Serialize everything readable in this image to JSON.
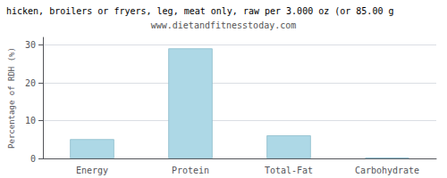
{
  "chart_data": {
    "type": "bar",
    "title": "hicken, broilers or fryers, leg, meat only, raw per 3.000 oz (or 85.00 g",
    "subtitle": "www.dietandfitnesstoday.com",
    "categories": [
      "Energy",
      "Protein",
      "Total-Fat",
      "Carbohydrate"
    ],
    "values": [
      5.1,
      29.1,
      6.1,
      0.2
    ],
    "color": "#add8e6",
    "ylabel": "Percentage of RDH (%)",
    "ylim": [
      0,
      32
    ],
    "yticks": [
      0,
      10,
      20,
      30
    ],
    "grid": true
  }
}
